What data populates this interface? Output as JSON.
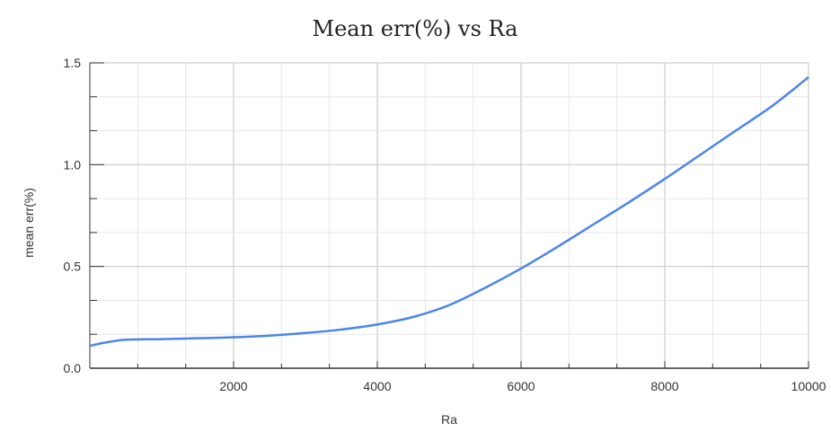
{
  "chart_data": {
    "type": "line",
    "title": "Mean err(%) vs Ra",
    "xlabel": "Ra",
    "ylabel": "mean err(%)",
    "xlim": [
      0,
      10000
    ],
    "ylim": [
      0,
      1.5
    ],
    "x_ticks": [
      2000,
      4000,
      6000,
      8000,
      10000
    ],
    "x_tick_labels": [
      "2000",
      "4000",
      "6000",
      "8000",
      "10000"
    ],
    "y_ticks": [
      0,
      0.5,
      1,
      1.5
    ],
    "y_tick_labels": [
      "0.0",
      "0.5",
      "1.0",
      "1.5"
    ],
    "grid": true,
    "series": [
      {
        "color": "#4a86e8",
        "x": [
          0,
          200,
          500,
          1000,
          1500,
          2000,
          2500,
          3000,
          3500,
          4000,
          4500,
          5000,
          5500,
          6000,
          6500,
          7000,
          7500,
          8000,
          8500,
          9000,
          9500,
          10000
        ],
        "y": [
          0.11,
          0.125,
          0.14,
          0.143,
          0.147,
          0.152,
          0.16,
          0.173,
          0.19,
          0.215,
          0.252,
          0.31,
          0.395,
          0.49,
          0.595,
          0.705,
          0.815,
          0.93,
          1.05,
          1.17,
          1.29,
          1.43
        ]
      }
    ]
  }
}
